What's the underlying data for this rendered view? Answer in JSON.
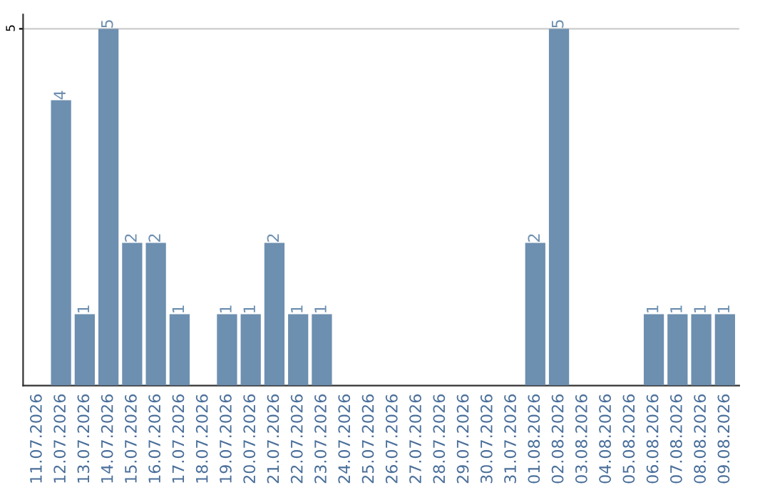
{
  "chart_data": {
    "type": "bar",
    "categories": [
      "11.07.2026",
      "12.07.2026",
      "13.07.2026",
      "14.07.2026",
      "15.07.2026",
      "16.07.2026",
      "17.07.2026",
      "18.07.2026",
      "19.07.2026",
      "20.07.2026",
      "21.07.2026",
      "22.07.2026",
      "23.07.2026",
      "24.07.2026",
      "25.07.2026",
      "26.07.2026",
      "27.07.2026",
      "28.07.2026",
      "29.07.2026",
      "30.07.2026",
      "31.07.2026",
      "01.08.2026",
      "02.08.2026",
      "03.08.2026",
      "04.08.2026",
      "05.08.2026",
      "06.08.2026",
      "07.08.2026",
      "08.08.2026",
      "09.08.2026"
    ],
    "values": [
      0,
      4,
      1,
      5,
      2,
      2,
      1,
      0,
      1,
      1,
      2,
      1,
      1,
      0,
      0,
      0,
      0,
      0,
      0,
      0,
      0,
      2,
      5,
      0,
      0,
      0,
      1,
      1,
      1,
      1
    ],
    "value_labels": [
      null,
      "4",
      "1",
      "5",
      "2",
      "2",
      "1",
      null,
      "1",
      "1",
      "2",
      "1",
      "1",
      null,
      null,
      null,
      null,
      null,
      null,
      null,
      null,
      "2",
      "5",
      null,
      null,
      null,
      "1",
      "1",
      "1",
      "1"
    ],
    "color": "#6d8fb0",
    "ylim": [
      0,
      5.2
    ],
    "yticks": [
      5
    ],
    "grid": "y",
    "legend": false
  }
}
